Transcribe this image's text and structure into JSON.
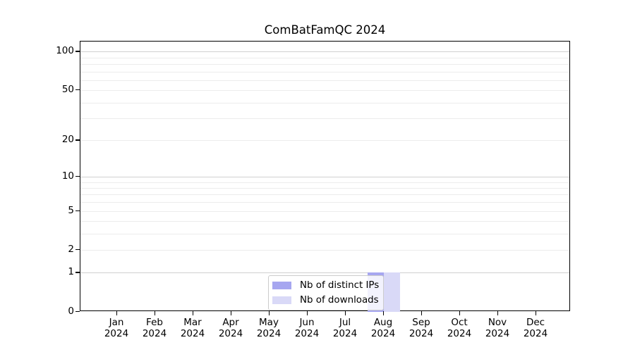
{
  "chart_data": {
    "type": "bar",
    "title": "ComBatFamQC 2024",
    "xlabel": "",
    "ylabel": "",
    "x_categories": [
      "Jan",
      "Feb",
      "Mar",
      "Apr",
      "May",
      "Jun",
      "Jul",
      "Aug",
      "Sep",
      "Oct",
      "Nov",
      "Dec"
    ],
    "x_sublabel": "2024",
    "series": [
      {
        "name": "Nb of distinct IPs",
        "color": "#a6a6f0",
        "values": [
          0,
          0,
          0,
          0,
          0,
          0,
          0,
          1,
          0,
          0,
          0,
          0
        ]
      },
      {
        "name": "Nb of downloads",
        "color": "#d9d9f7",
        "values": [
          0,
          0,
          0,
          0,
          0,
          0,
          0,
          1,
          0,
          0,
          0,
          0
        ]
      }
    ],
    "yscale": "log1p",
    "ylim": [
      0,
      120
    ],
    "y_ticks": [
      0,
      1,
      2,
      5,
      10,
      20,
      50,
      100
    ],
    "y_minor_gridlines": [
      2,
      3,
      4,
      5,
      6,
      7,
      8,
      9,
      20,
      30,
      40,
      50,
      60,
      70,
      80,
      90
    ],
    "y_major_gridlines": [
      1,
      10,
      100
    ],
    "grid": true,
    "legend_position": "lower-center",
    "colors": {
      "background": "#ffffff",
      "frame": "#000000",
      "grid_minor": "#ececec",
      "grid_major": "#d0d0d0",
      "text": "#000000"
    }
  }
}
